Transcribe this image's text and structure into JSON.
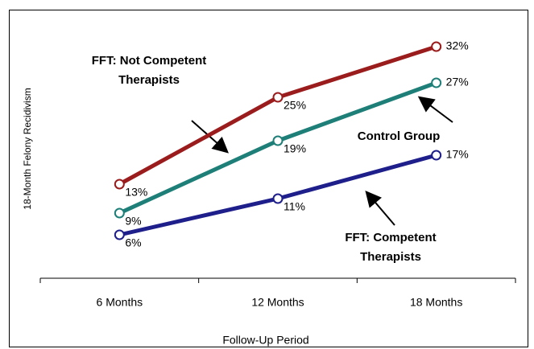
{
  "chart_data": {
    "type": "line",
    "categories": [
      "6 Months",
      "12 Months",
      "18 Months"
    ],
    "series": [
      {
        "name": "FFT: Not Competent Therapists",
        "color": "#9b1c1c",
        "values": [
          13,
          25,
          32
        ],
        "value_labels": [
          "13%",
          "25%",
          "32%"
        ]
      },
      {
        "name": "Control Group",
        "color": "#1e7f78",
        "values": [
          9,
          19,
          27
        ],
        "value_labels": [
          "9%",
          "19%",
          "27%"
        ]
      },
      {
        "name": "FFT: Competent Therapists",
        "color": "#1f1f8c",
        "values": [
          6,
          11,
          17
        ],
        "value_labels": [
          "6%",
          "11%",
          "17%"
        ]
      }
    ],
    "xlabel": "Follow-Up Period",
    "ylabel": "18-Month Felony Recidivism",
    "ylim": [
      0,
      36
    ],
    "grid": false
  }
}
